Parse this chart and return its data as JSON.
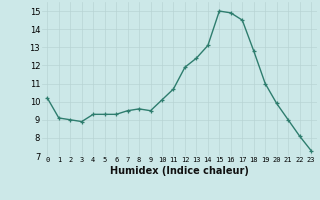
{
  "x": [
    0,
    1,
    2,
    3,
    4,
    5,
    6,
    7,
    8,
    9,
    10,
    11,
    12,
    13,
    14,
    15,
    16,
    17,
    18,
    19,
    20,
    21,
    22,
    23
  ],
  "y": [
    10.2,
    9.1,
    9.0,
    8.9,
    9.3,
    9.3,
    9.3,
    9.5,
    9.6,
    9.5,
    10.1,
    10.7,
    11.9,
    12.4,
    13.1,
    15.0,
    14.9,
    14.5,
    12.8,
    11.0,
    9.9,
    9.0,
    8.1,
    7.3
  ],
  "xlabel": "Humidex (Indice chaleur)",
  "xlim": [
    -0.5,
    23.5
  ],
  "ylim": [
    7,
    15.5
  ],
  "yticks": [
    7,
    8,
    9,
    10,
    11,
    12,
    13,
    14,
    15
  ],
  "xticks": [
    0,
    1,
    2,
    3,
    4,
    5,
    6,
    7,
    8,
    9,
    10,
    11,
    12,
    13,
    14,
    15,
    16,
    17,
    18,
    19,
    20,
    21,
    22,
    23
  ],
  "line_color": "#2e7d6e",
  "marker_color": "#2e7d6e",
  "bg_color": "#cce8e8",
  "grid_color": "#b8d4d4",
  "plot_bg": "#cce8e8"
}
